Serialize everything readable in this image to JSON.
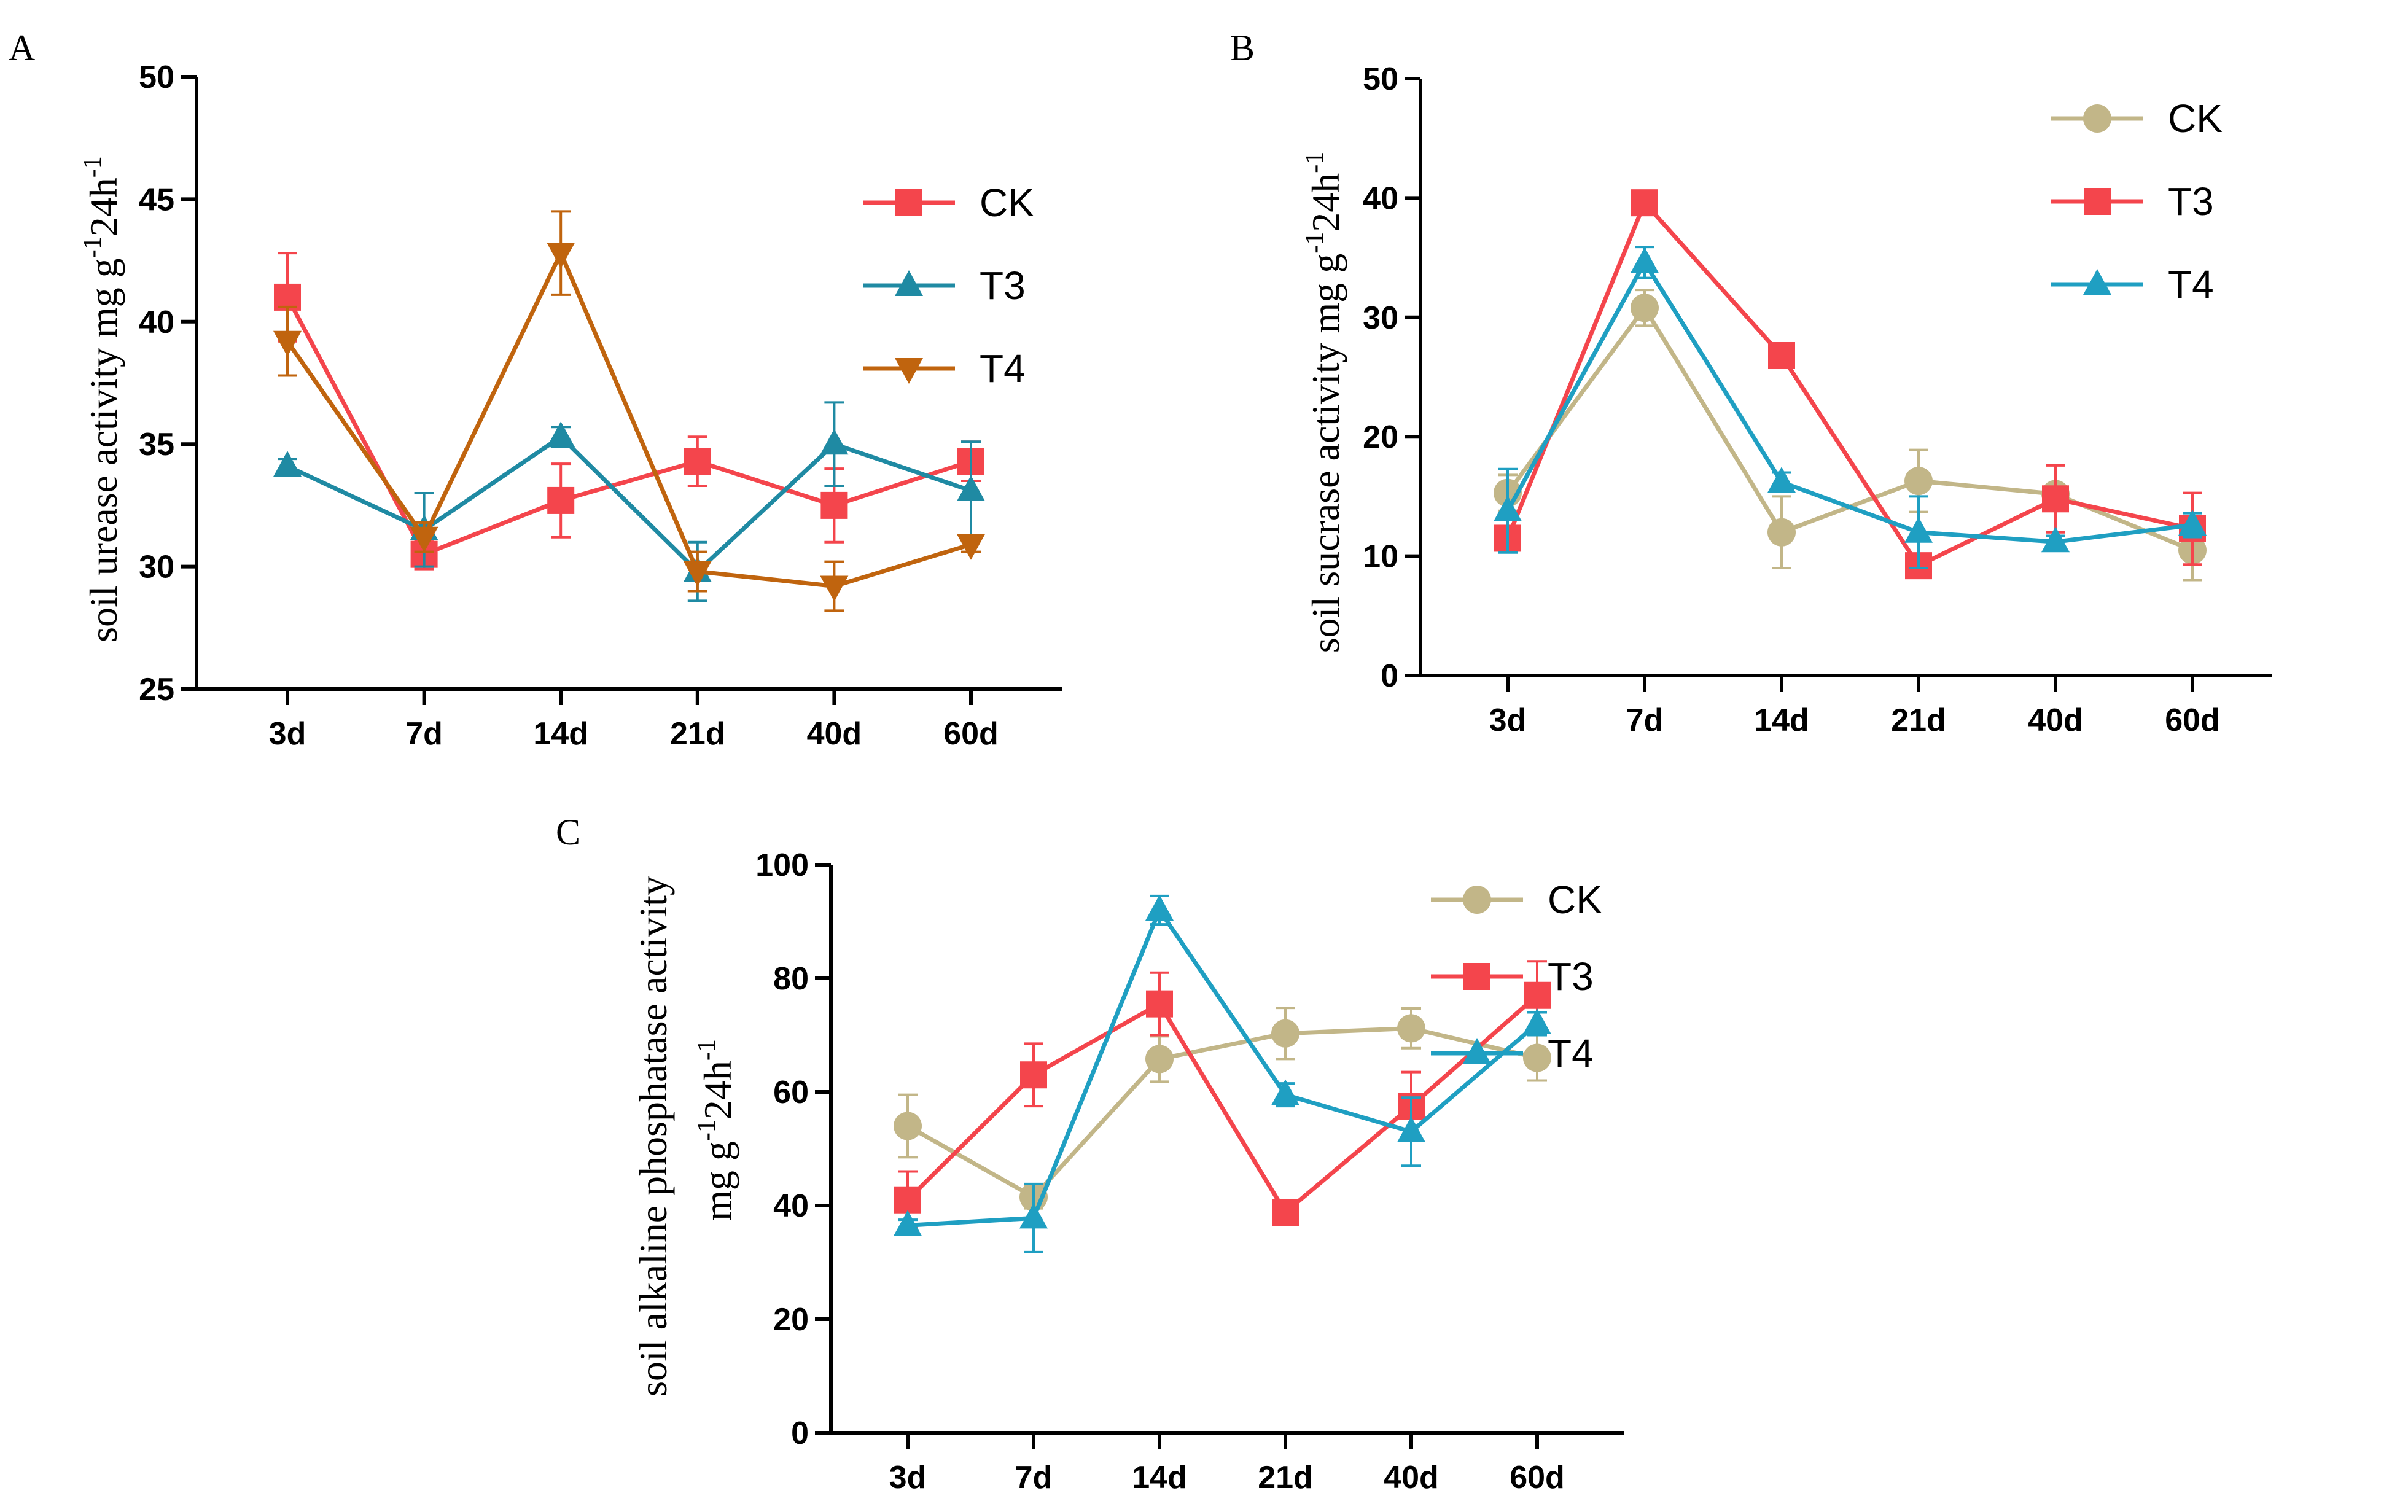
{
  "colors": {
    "CK_A": "#f4454c",
    "T3_A": "#1f8aa3",
    "T4_A": "#c0640e",
    "CK": "#c2b688",
    "T3": "#f4454c",
    "T4": "#1f9fc2"
  },
  "chart_data": [
    {
      "type": "line",
      "panel": "A",
      "ylabel": {
        "main": "soil urease activity mg g",
        "sup1": "-1",
        "mid": "24h",
        "sup2": "-1"
      },
      "categories": [
        "3d",
        "7d",
        "14d",
        "21d",
        "40d",
        "60d"
      ],
      "ylim": [
        25,
        50
      ],
      "yticks": [
        "25",
        "30",
        "35",
        "40",
        "45",
        "50"
      ],
      "legend_position": "right",
      "series": [
        {
          "name": "CK",
          "marker": "square",
          "color_key": "CK_A",
          "values": [
            41.0,
            30.5,
            32.7,
            34.3,
            32.5,
            34.3
          ],
          "errors": [
            1.8,
            0.6,
            1.5,
            1.0,
            1.5,
            0.8
          ]
        },
        {
          "name": "T3",
          "marker": "triangle-up",
          "color_key": "T3_A",
          "values": [
            34.1,
            31.5,
            35.3,
            29.8,
            35.0,
            33.1
          ],
          "errors": [
            0.3,
            1.5,
            0.4,
            1.2,
            1.7,
            2.0
          ]
        },
        {
          "name": "T4",
          "marker": "triangle-down",
          "color_key": "T4_A",
          "values": [
            39.2,
            31.2,
            42.8,
            29.8,
            29.2,
            30.9
          ],
          "errors": [
            1.4,
            0.6,
            1.7,
            0.8,
            1.0,
            0.3
          ]
        }
      ]
    },
    {
      "type": "line",
      "panel": "B",
      "ylabel": {
        "main": "soil sucrase activity mg g",
        "sup1": "-1",
        "mid": "24h",
        "sup2": "-1"
      },
      "categories": [
        "3d",
        "7d",
        "14d",
        "21d",
        "40d",
        "60d"
      ],
      "ylim": [
        0,
        50
      ],
      "yticks": [
        "0",
        "10",
        "20",
        "30",
        "40",
        "50"
      ],
      "legend_position": "top-right",
      "series": [
        {
          "name": "CK",
          "marker": "circle",
          "color_key": "CK",
          "values": [
            15.3,
            30.8,
            12.0,
            16.3,
            15.2,
            10.5
          ],
          "errors": [
            1.5,
            1.5,
            3.0,
            2.6,
            0.8,
            2.5
          ]
        },
        {
          "name": "T3",
          "marker": "square",
          "color_key": "T3",
          "values": [
            11.5,
            39.6,
            26.8,
            9.2,
            14.8,
            12.3
          ],
          "errors": [
            0.8,
            0.5,
            0.6,
            0.6,
            2.8,
            3.0
          ]
        },
        {
          "name": "T4",
          "marker": "triangle-up",
          "color_key": "T4",
          "values": [
            13.8,
            34.6,
            16.2,
            12.0,
            11.2,
            12.6
          ],
          "errors": [
            3.5,
            1.3,
            0.8,
            3.0,
            0.5,
            1.0
          ]
        }
      ]
    },
    {
      "type": "line",
      "panel": "C",
      "ylabel": {
        "line1": "soil alkaline phosphatase activity",
        "main": "mg g",
        "sup1": "-1",
        "mid": "24h",
        "sup2": "-1"
      },
      "categories": [
        "3d",
        "7d",
        "14d",
        "21d",
        "40d",
        "60d"
      ],
      "ylim": [
        0,
        100
      ],
      "yticks": [
        "0",
        "20",
        "40",
        "60",
        "80",
        "100"
      ],
      "legend_position": "top-right",
      "series": [
        {
          "name": "CK",
          "marker": "circle",
          "color_key": "CK",
          "values": [
            54.0,
            41.5,
            65.8,
            70.3,
            71.2,
            66.0
          ],
          "errors": [
            5.5,
            2.0,
            4.0,
            4.5,
            3.5,
            4.0
          ]
        },
        {
          "name": "T3",
          "marker": "square",
          "color_key": "T3",
          "values": [
            41.0,
            63.0,
            75.5,
            38.8,
            57.5,
            77.0
          ],
          "errors": [
            5.0,
            5.5,
            5.5,
            1.0,
            6.0,
            6.0
          ]
        },
        {
          "name": "T4",
          "marker": "triangle-up",
          "color_key": "T4",
          "values": [
            36.5,
            37.8,
            92.0,
            59.5,
            53.0,
            72.0
          ],
          "errors": [
            1.0,
            6.0,
            2.5,
            2.0,
            6.0,
            2.0
          ]
        }
      ]
    }
  ]
}
